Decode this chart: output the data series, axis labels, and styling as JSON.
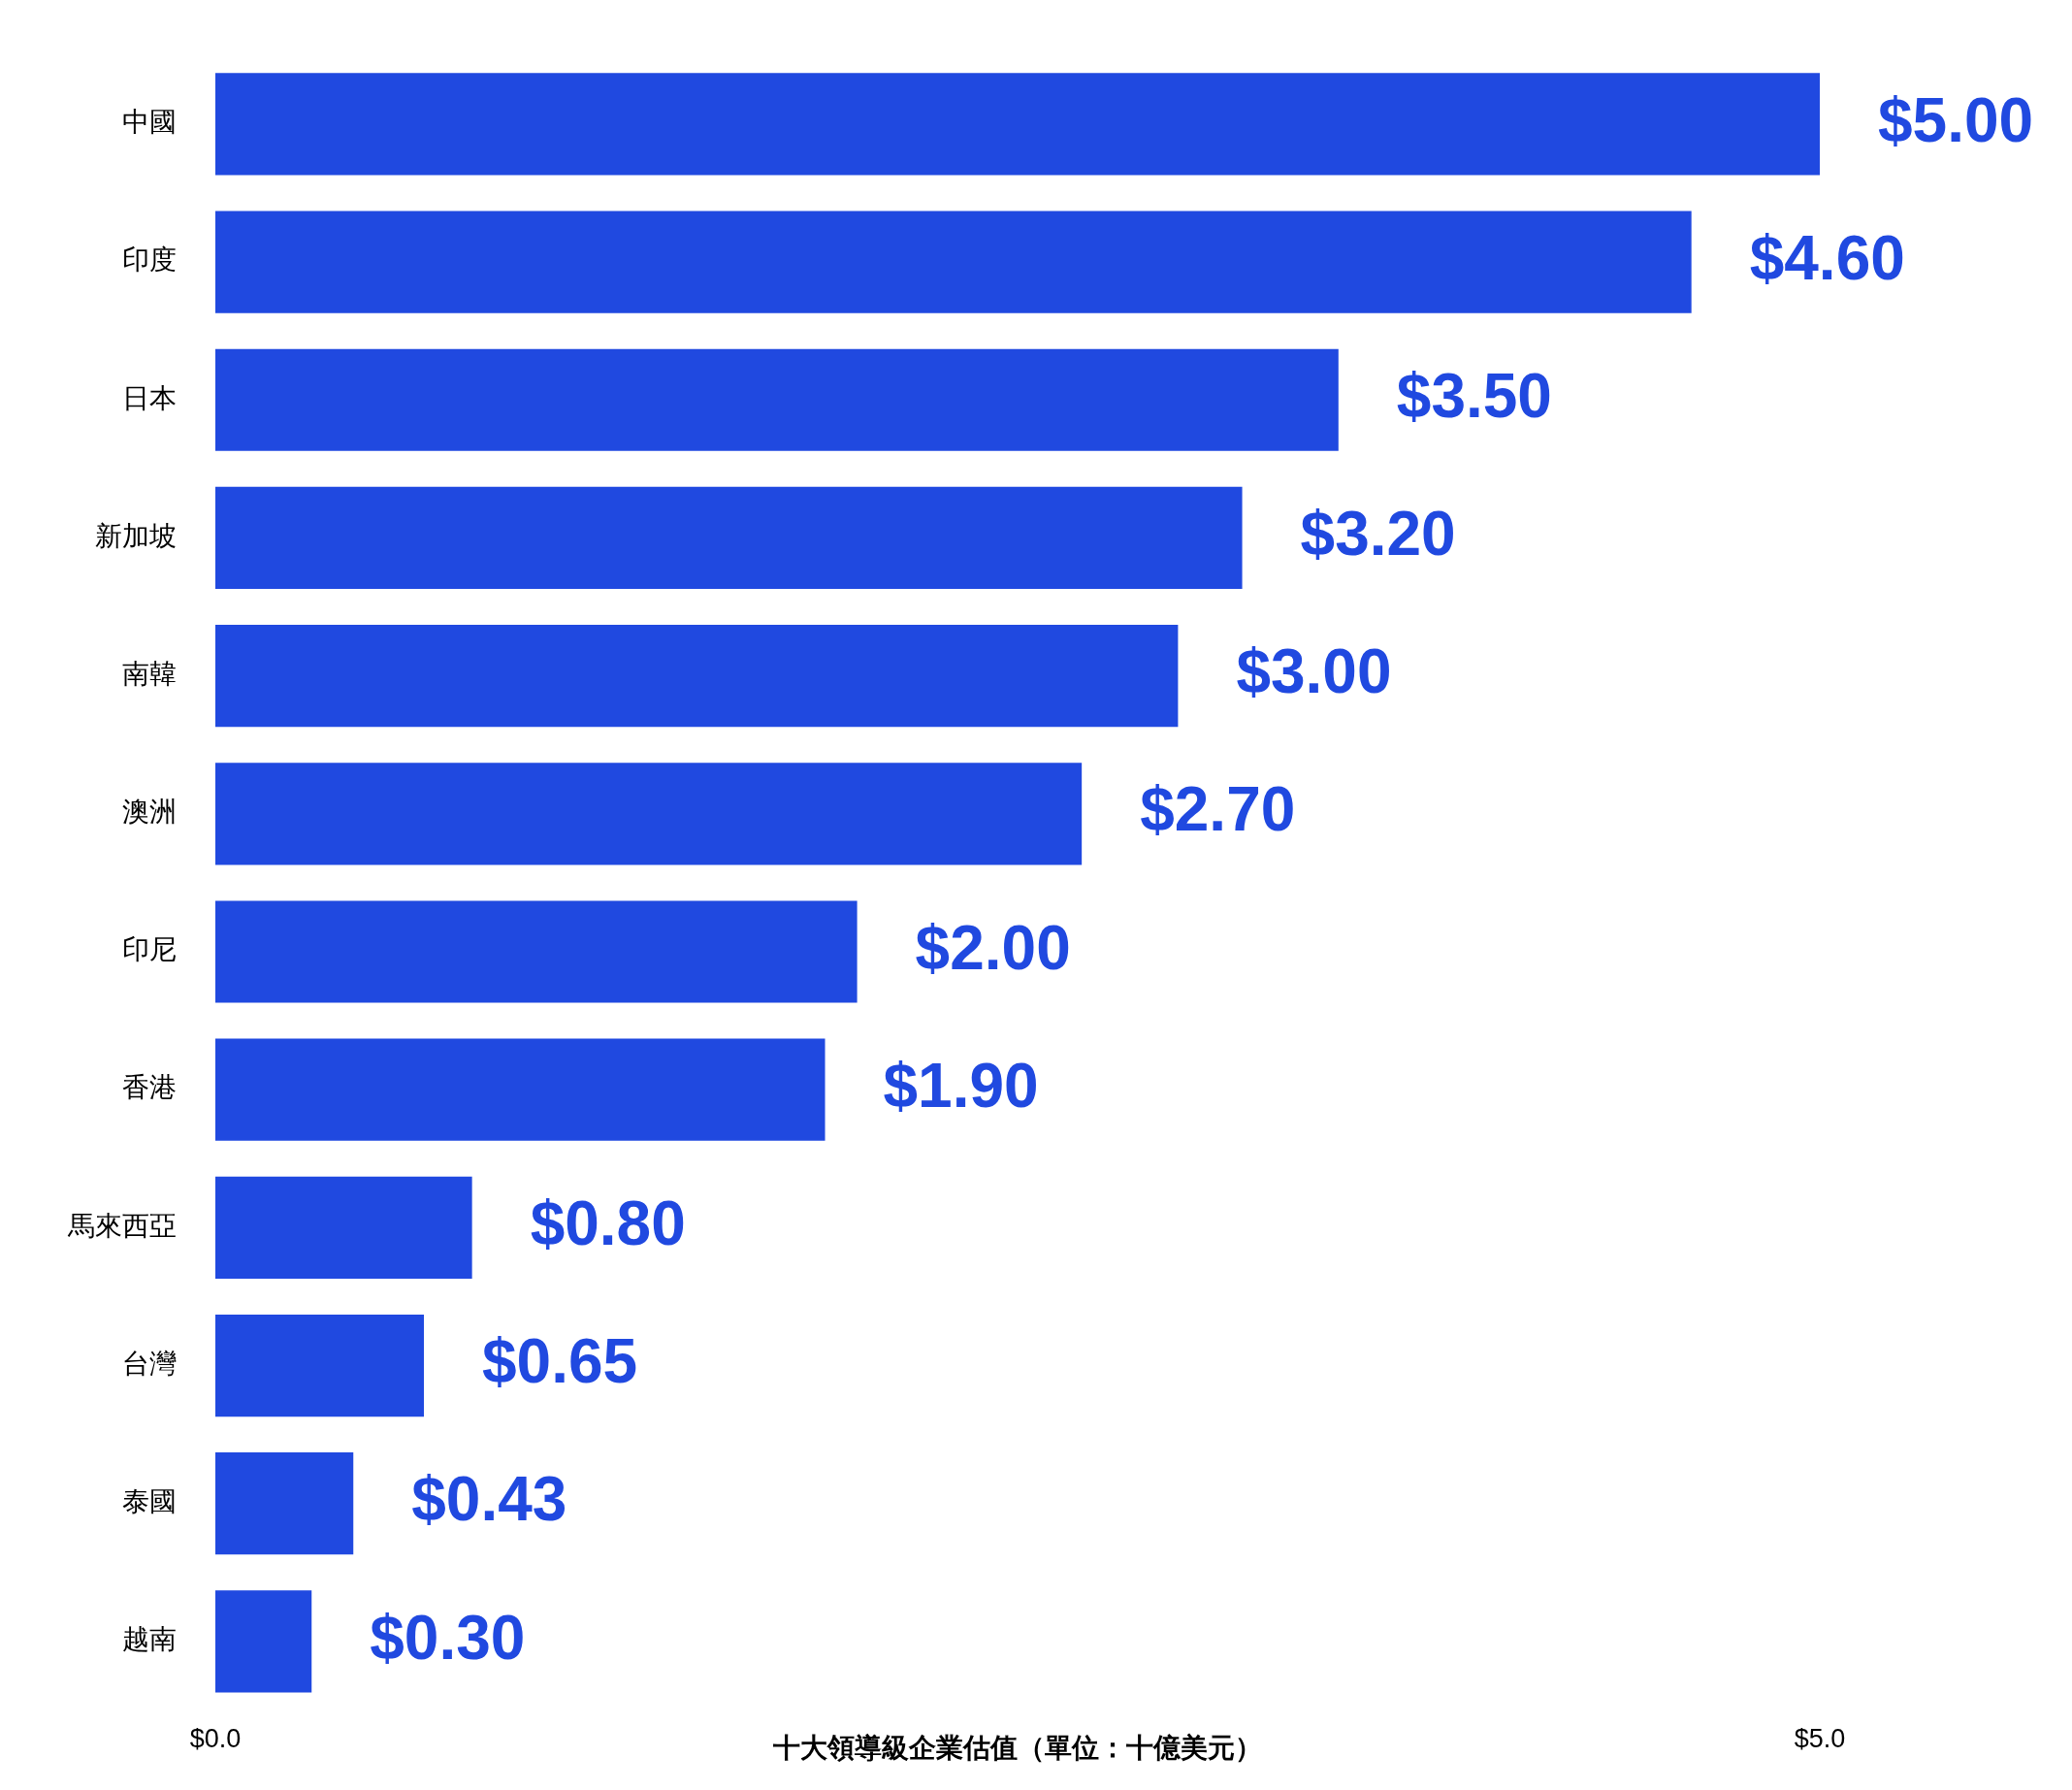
{
  "chart_data": {
    "type": "bar",
    "orientation": "horizontal",
    "xlabel": "十大領導級企業估值（單位：十億美元）",
    "categories": [
      "中國",
      "印度",
      "日本",
      "新加坡",
      "南韓",
      "澳洲",
      "印尼",
      "香港",
      "馬來西亞",
      "台灣",
      "泰國",
      "越南"
    ],
    "values": [
      5.0,
      4.6,
      3.5,
      3.2,
      3.0,
      2.7,
      2.0,
      1.9,
      0.8,
      0.65,
      0.43,
      0.3
    ],
    "value_labels": [
      "$5.00",
      "$4.60",
      "$3.50",
      "$3.20",
      "$3.00",
      "$2.70",
      "$2.00",
      "$1.90",
      "$0.80",
      "$0.65",
      "$0.43",
      "$0.30"
    ],
    "color": "#2049e0",
    "xlim": [
      0,
      5
    ],
    "xticks": [
      {
        "value": 0,
        "label": "$0.0"
      },
      {
        "value": 5,
        "label": "$5.0"
      }
    ],
    "grid": false,
    "legend": false
  }
}
